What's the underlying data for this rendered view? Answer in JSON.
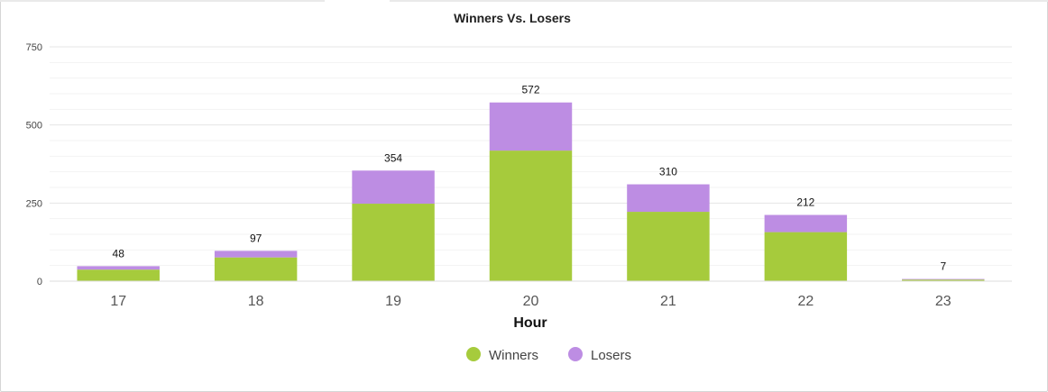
{
  "chart_data": {
    "type": "bar",
    "stacked": true,
    "title": "Winners Vs. Losers",
    "xlabel": "Hour",
    "ylabel": "",
    "ylim": [
      0,
      750
    ],
    "yticks": [
      0,
      250,
      500,
      750
    ],
    "minor_grid_step": 50,
    "grid": true,
    "legend_position": "bottom-center",
    "categories": [
      "17",
      "18",
      "19",
      "20",
      "21",
      "22",
      "23"
    ],
    "series": [
      {
        "name": "Winners",
        "color": "#a6cb3c",
        "values": [
          37,
          76,
          248,
          418,
          222,
          157,
          5
        ]
      },
      {
        "name": "Losers",
        "color": "#bd8de3",
        "values": [
          11,
          21,
          106,
          154,
          88,
          55,
          2
        ]
      }
    ],
    "totals": [
      48,
      97,
      354,
      572,
      310,
      212,
      7
    ]
  }
}
